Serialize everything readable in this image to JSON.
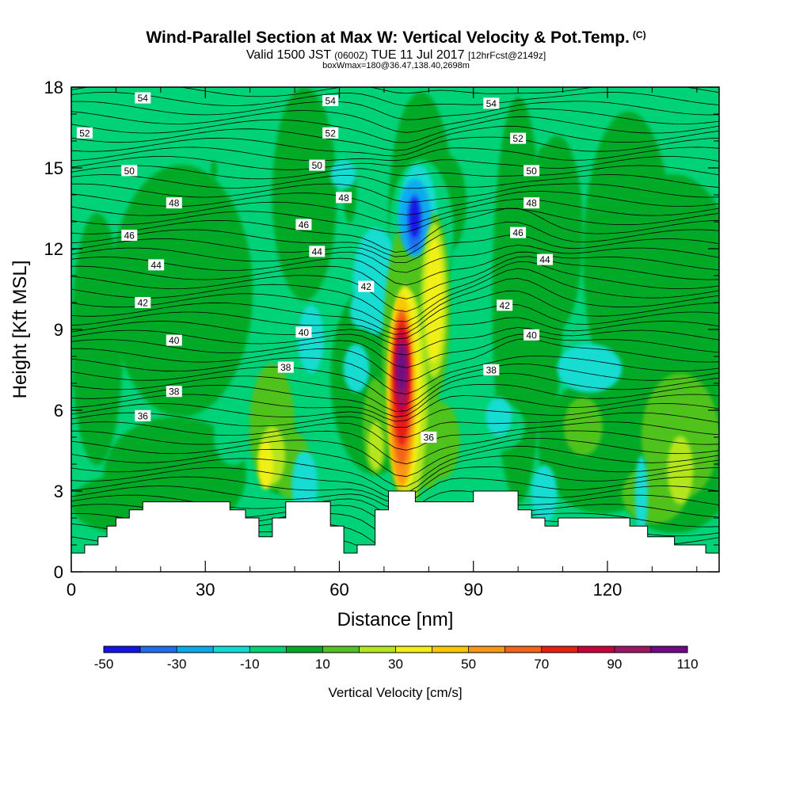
{
  "header": {
    "title": "Wind-Parallel Section at Max W: Vertical Velocity & Pot.Temp.",
    "copyright": "(C)",
    "valid_prefix": "Valid 1500 JST",
    "valid_utc": "(0600Z)",
    "valid_date": "TUE 11 Jul 2017",
    "forecast": "[12hrFcst@2149z]",
    "box_info": "boxWmax=180@36.47,138.40,2698m"
  },
  "chart_data": {
    "type": "heatmap",
    "xlabel": "Distance [nm]",
    "ylabel": "Height [Kft MSL]",
    "xlim": [
      0,
      145
    ],
    "ylim": [
      0,
      18
    ],
    "x_ticks": [
      0,
      30,
      60,
      90,
      120
    ],
    "y_ticks": [
      0,
      3,
      6,
      9,
      12,
      15,
      18
    ],
    "colorbar": {
      "label": "Vertical Velocity [cm/s]",
      "levels": [
        -50,
        -40,
        -30,
        -20,
        -10,
        0,
        10,
        20,
        30,
        40,
        50,
        60,
        70,
        80,
        90,
        100,
        110
      ],
      "tick_labels": [
        "-50",
        "-30",
        "-10",
        "10",
        "30",
        "50",
        "70",
        "90",
        "110"
      ],
      "colors": [
        "#1414e6",
        "#1e6ef0",
        "#0aaaf0",
        "#12dcd2",
        "#00d278",
        "#00aa28",
        "#50c31e",
        "#b4e61e",
        "#f0f014",
        "#fac800",
        "#fa9614",
        "#f56414",
        "#e61e14",
        "#c8003c",
        "#a01464",
        "#6e0a82"
      ]
    },
    "updraft_core": {
      "x": 74,
      "height_kft": 7.5,
      "max_cms": 110
    },
    "downdraft_core": {
      "x": 77,
      "height_kft": 13.2,
      "min_cms": -50
    },
    "terrain_kft": [
      {
        "x": 0,
        "h": 0.7
      },
      {
        "x": 3,
        "h": 0.7
      },
      {
        "x": 3,
        "h": 1.0
      },
      {
        "x": 6,
        "h": 1.0
      },
      {
        "x": 6,
        "h": 1.3
      },
      {
        "x": 8,
        "h": 1.3
      },
      {
        "x": 8,
        "h": 1.7
      },
      {
        "x": 10,
        "h": 1.7
      },
      {
        "x": 10,
        "h": 2.0
      },
      {
        "x": 13,
        "h": 2.0
      },
      {
        "x": 13,
        "h": 2.3
      },
      {
        "x": 16,
        "h": 2.3
      },
      {
        "x": 16,
        "h": 2.6
      },
      {
        "x": 35.5,
        "h": 2.6
      },
      {
        "x": 35.5,
        "h": 2.3
      },
      {
        "x": 39,
        "h": 2.3
      },
      {
        "x": 39,
        "h": 2.0
      },
      {
        "x": 42,
        "h": 2.0
      },
      {
        "x": 42,
        "h": 1.3
      },
      {
        "x": 45,
        "h": 1.3
      },
      {
        "x": 45,
        "h": 2.0
      },
      {
        "x": 48,
        "h": 2.0
      },
      {
        "x": 48,
        "h": 2.6
      },
      {
        "x": 58,
        "h": 2.6
      },
      {
        "x": 58,
        "h": 1.7
      },
      {
        "x": 61,
        "h": 1.7
      },
      {
        "x": 61,
        "h": 0.7
      },
      {
        "x": 64,
        "h": 0.7
      },
      {
        "x": 64,
        "h": 1.0
      },
      {
        "x": 68,
        "h": 1.0
      },
      {
        "x": 68,
        "h": 2.3
      },
      {
        "x": 71,
        "h": 2.3
      },
      {
        "x": 71,
        "h": 3.0
      },
      {
        "x": 77,
        "h": 3.0
      },
      {
        "x": 77,
        "h": 2.6
      },
      {
        "x": 90,
        "h": 2.6
      },
      {
        "x": 90,
        "h": 3.0
      },
      {
        "x": 100,
        "h": 3.0
      },
      {
        "x": 100,
        "h": 2.3
      },
      {
        "x": 103,
        "h": 2.3
      },
      {
        "x": 103,
        "h": 2.0
      },
      {
        "x": 106,
        "h": 2.0
      },
      {
        "x": 106,
        "h": 1.7
      },
      {
        "x": 109,
        "h": 1.7
      },
      {
        "x": 109,
        "h": 2.0
      },
      {
        "x": 125,
        "h": 2.0
      },
      {
        "x": 125,
        "h": 1.7
      },
      {
        "x": 129,
        "h": 1.7
      },
      {
        "x": 129,
        "h": 1.3
      },
      {
        "x": 135,
        "h": 1.3
      },
      {
        "x": 135,
        "h": 1.0
      },
      {
        "x": 142,
        "h": 1.0
      },
      {
        "x": 142,
        "h": 0.7
      },
      {
        "x": 145,
        "h": 0.7
      }
    ],
    "isentrope_labels": [
      {
        "text": "54",
        "x": 16,
        "y": 17.6
      },
      {
        "text": "54",
        "x": 58,
        "y": 17.5
      },
      {
        "text": "54",
        "x": 94,
        "y": 17.4
      },
      {
        "text": "52",
        "x": 3,
        "y": 16.3
      },
      {
        "text": "52",
        "x": 58,
        "y": 16.3
      },
      {
        "text": "52",
        "x": 100,
        "y": 16.1
      },
      {
        "text": "50",
        "x": 13,
        "y": 14.9
      },
      {
        "text": "50",
        "x": 55,
        "y": 15.1
      },
      {
        "text": "50",
        "x": 103,
        "y": 14.9
      },
      {
        "text": "48",
        "x": 23,
        "y": 13.7
      },
      {
        "text": "48",
        "x": 61,
        "y": 13.9
      },
      {
        "text": "48",
        "x": 103,
        "y": 13.7
      },
      {
        "text": "46",
        "x": 13,
        "y": 12.5
      },
      {
        "text": "46",
        "x": 52,
        "y": 12.9
      },
      {
        "text": "46",
        "x": 100,
        "y": 12.6
      },
      {
        "text": "44",
        "x": 19,
        "y": 11.4
      },
      {
        "text": "44",
        "x": 55,
        "y": 11.9
      },
      {
        "text": "44",
        "x": 106,
        "y": 11.6
      },
      {
        "text": "42",
        "x": 16,
        "y": 10.0
      },
      {
        "text": "42",
        "x": 66,
        "y": 10.6
      },
      {
        "text": "42",
        "x": 97,
        "y": 9.9
      },
      {
        "text": "40",
        "x": 23,
        "y": 8.6
      },
      {
        "text": "40",
        "x": 52,
        "y": 8.9
      },
      {
        "text": "40",
        "x": 103,
        "y": 8.8
      },
      {
        "text": "38",
        "x": 23,
        "y": 6.7
      },
      {
        "text": "38",
        "x": 48,
        "y": 7.6
      },
      {
        "text": "38",
        "x": 94,
        "y": 7.5
      },
      {
        "text": "36",
        "x": 16,
        "y": 5.8
      },
      {
        "text": "36",
        "x": 80,
        "y": 5.0
      }
    ]
  }
}
